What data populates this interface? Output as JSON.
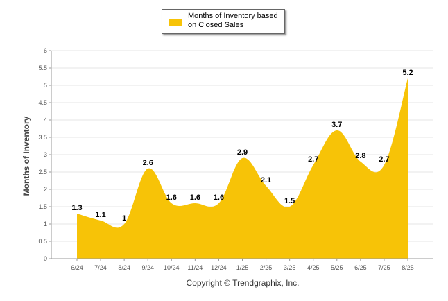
{
  "chart_data": {
    "type": "area",
    "categories": [
      "6/24",
      "7/24",
      "8/24",
      "9/24",
      "10/24",
      "11/24",
      "12/24",
      "1/25",
      "2/25",
      "3/25",
      "4/25",
      "5/25",
      "6/25",
      "7/25",
      "8/25"
    ],
    "series": [
      {
        "name": "Months of Inventory based on Closed Sales",
        "values": [
          1.3,
          1.1,
          1,
          2.6,
          1.6,
          1.6,
          1.6,
          2.9,
          2.1,
          1.5,
          2.7,
          3.7,
          2.8,
          2.7,
          5.2
        ]
      }
    ],
    "data_labels": [
      "1.3",
      "1.1",
      "1",
      "2.6",
      "1.6",
      "1.6",
      "1.6",
      "2.9",
      "2.1",
      "1.5",
      "2.7",
      "3.7",
      "2.8",
      "2.7",
      "5.2"
    ],
    "ylabel": "Months of Inventory",
    "ylim": [
      0,
      6
    ],
    "yticks": [
      "0",
      "0.5",
      "1",
      "1.5",
      "2",
      "2.5",
      "3",
      "3.5",
      "4",
      "4.5",
      "5",
      "5.5",
      "6"
    ],
    "grid": true,
    "legend_position": "top-center",
    "colors": {
      "fill": "#F7C307",
      "grid": "#e6e6e6",
      "axis": "#999999",
      "text": "#000000"
    }
  },
  "legend": {
    "label": "Months of Inventory based on Closed Sales"
  },
  "footer": {
    "copyright": "Copyright © Trendgraphix, Inc."
  }
}
